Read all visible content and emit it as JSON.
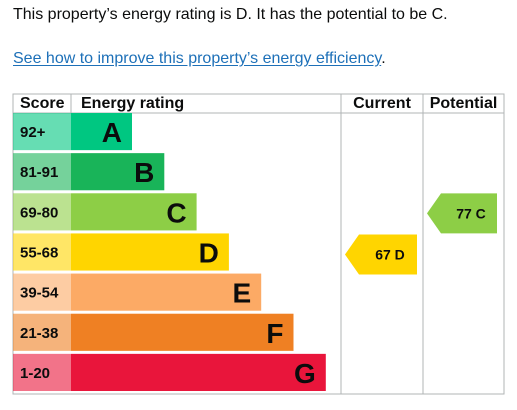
{
  "intro": {
    "text": "This property’s energy rating is D. It has the potential to be C."
  },
  "link": {
    "text": "See how to improve this property’s energy efficiency",
    "suffix": "."
  },
  "chart_data": {
    "type": "bar",
    "headers": {
      "score": "Score",
      "energy_rating": "Energy rating",
      "current": "Current",
      "potential": "Potential"
    },
    "bands": [
      {
        "letter": "A",
        "score": "92+",
        "color": "#00c781"
      },
      {
        "letter": "B",
        "score": "81-91",
        "color": "#19b459"
      },
      {
        "letter": "C",
        "score": "69-80",
        "color": "#8dce46"
      },
      {
        "letter": "D",
        "score": "55-68",
        "color": "#ffd500"
      },
      {
        "letter": "E",
        "score": "39-54",
        "color": "#fcaa65"
      },
      {
        "letter": "F",
        "score": "21-38",
        "color": "#ef8023"
      },
      {
        "letter": "G",
        "score": "1-20",
        "color": "#e9153b"
      }
    ],
    "current": {
      "value": 67,
      "band": "D",
      "label": "67 D",
      "color": "#ffd500"
    },
    "potential": {
      "value": 77,
      "band": "C",
      "label": "77 C",
      "color": "#8dce46"
    }
  }
}
